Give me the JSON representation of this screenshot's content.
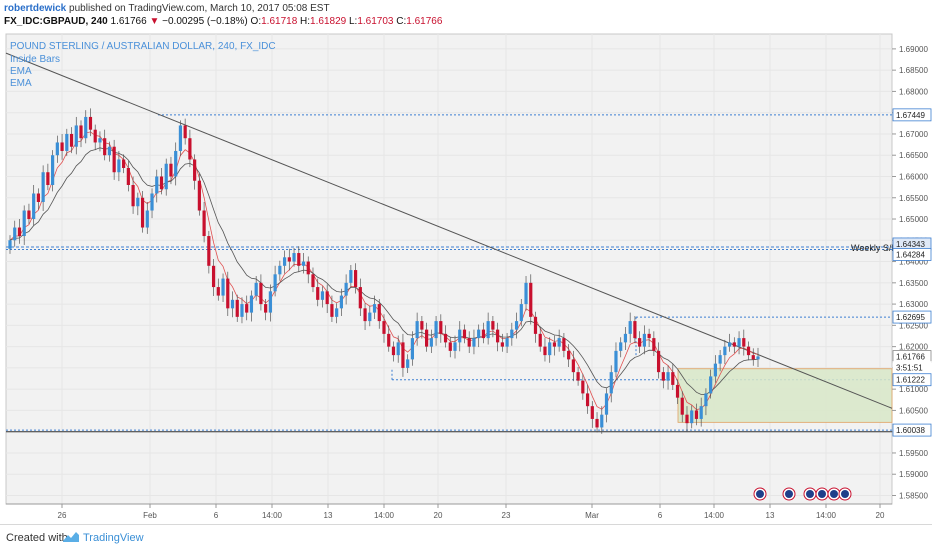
{
  "header": {
    "user": "robertdewick",
    "published_text": "published on TradingView.com, March 10, 2017 05:08 EST",
    "symbol": "FX_IDC:GBPAUD, 240",
    "last": "1.61766",
    "change": "−0.00295 (−0.18%)",
    "o_label": "O:",
    "o_value": "1.61718",
    "h_label": "H:",
    "h_value": "1.61829",
    "l_label": "L:",
    "l_value": "1.61703",
    "c_label": "C:",
    "c_value": "1.61766"
  },
  "legend": {
    "title": "POUND STERLING / AUSTRALIAN DOLLAR, 240, FX_IDC",
    "items": [
      "Inside Bars",
      "EMA",
      "EMA"
    ]
  },
  "annotations": {
    "weekly_sr": "Weekly S/R."
  },
  "price_scale": {
    "ticks": [
      "1.69000",
      "1.68500",
      "1.68000",
      "1.67500",
      "1.67000",
      "1.66500",
      "1.66000",
      "1.65500",
      "1.65000",
      "1.64500",
      "1.64000",
      "1.63500",
      "1.63000",
      "1.62500",
      "1.62000",
      "1.61500",
      "1.61000",
      "1.60500",
      "1.60000",
      "1.59500",
      "1.59000",
      "1.58500"
    ],
    "badges": [
      {
        "value": "1.67449",
        "style": "line"
      },
      {
        "value": "1.64343",
        "style": "filled"
      },
      {
        "value": "1.64284",
        "style": "line"
      },
      {
        "value": "1.62695",
        "style": "line"
      },
      {
        "value": "1.61766",
        "style": "current"
      },
      {
        "value": "3:51:51",
        "style": "timer"
      },
      {
        "value": "1.61222",
        "style": "line"
      },
      {
        "value": "1.60038",
        "style": "line"
      }
    ]
  },
  "time_scale": {
    "ticks": [
      "26",
      "Feb",
      "6",
      "14:00",
      "13",
      "14:00",
      "20",
      "23",
      "Mar",
      "6",
      "14:00",
      "13",
      "14:00",
      "20"
    ]
  },
  "footer": {
    "created": "Created with",
    "brand": "TradingView"
  },
  "chart_data": {
    "type": "candlestick",
    "symbol": "GBPAUD",
    "timeframe": "240",
    "ylim": [
      1.583,
      1.6935
    ],
    "current_price": 1.61766,
    "horizontal_levels": [
      1.67449,
      1.64343,
      1.64284,
      1.62695,
      1.61222,
      1.60038
    ],
    "trendline": {
      "from": 1.689,
      "to": 1.6055
    },
    "target_zone": {
      "from": 1.6148,
      "to": 1.6022
    },
    "indicators": [
      "Inside Bars",
      "EMA",
      "EMA"
    ],
    "closes": [
      1.645,
      1.648,
      1.646,
      1.652,
      1.65,
      1.656,
      1.654,
      1.661,
      1.658,
      1.665,
      1.668,
      1.666,
      1.67,
      1.667,
      1.672,
      1.669,
      1.674,
      1.671,
      1.668,
      1.669,
      1.665,
      1.667,
      1.661,
      1.664,
      1.662,
      1.658,
      1.653,
      1.655,
      1.648,
      1.652,
      1.656,
      1.66,
      1.657,
      1.663,
      1.66,
      1.666,
      1.672,
      1.669,
      1.664,
      1.659,
      1.652,
      1.646,
      1.639,
      1.634,
      1.632,
      1.636,
      1.629,
      1.631,
      1.627,
      1.63,
      1.628,
      1.632,
      1.635,
      1.63,
      1.628,
      1.633,
      1.637,
      1.639,
      1.641,
      1.64,
      1.642,
      1.639,
      1.64,
      1.637,
      1.634,
      1.631,
      1.633,
      1.63,
      1.627,
      1.629,
      1.632,
      1.635,
      1.638,
      1.634,
      1.629,
      1.626,
      1.628,
      1.63,
      1.626,
      1.623,
      1.62,
      1.618,
      1.621,
      1.615,
      1.617,
      1.622,
      1.626,
      1.624,
      1.62,
      1.622,
      1.626,
      1.623,
      1.621,
      1.619,
      1.621,
      1.624,
      1.622,
      1.62,
      1.622,
      1.624,
      1.622,
      1.626,
      1.624,
      1.621,
      1.62,
      1.622,
      1.624,
      1.626,
      1.63,
      1.635,
      1.627,
      1.623,
      1.62,
      1.618,
      1.621,
      1.62,
      1.622,
      1.619,
      1.617,
      1.614,
      1.612,
      1.609,
      1.606,
      1.603,
      1.601,
      1.604,
      1.609,
      1.614,
      1.619,
      1.621,
      1.623,
      1.626,
      1.622,
      1.62,
      1.623,
      1.622,
      1.619,
      1.614,
      1.612,
      1.614,
      1.611,
      1.608,
      1.604,
      1.602,
      1.605,
      1.603,
      1.606,
      1.609,
      1.613,
      1.616,
      1.618,
      1.62,
      1.621,
      1.62,
      1.622,
      1.62,
      1.618,
      1.617,
      1.6177
    ]
  }
}
